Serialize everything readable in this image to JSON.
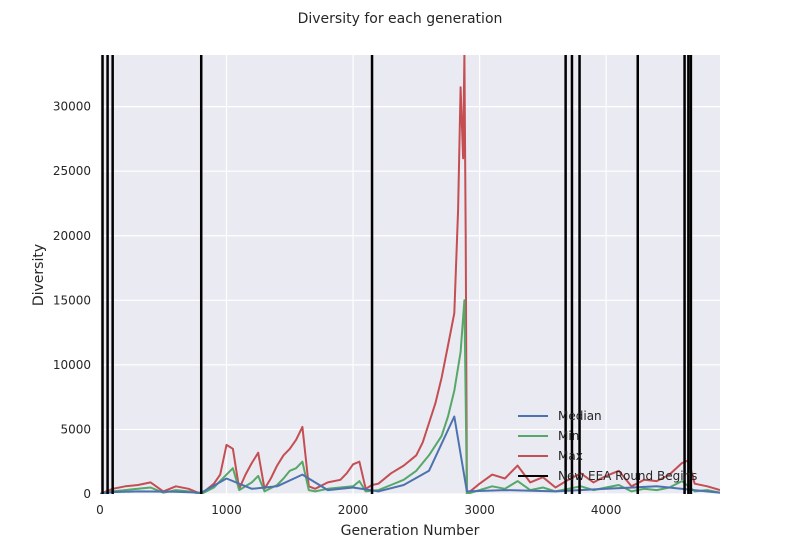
{
  "chart_data": {
    "type": "line",
    "title": "Diversity for each generation",
    "xlabel": "Generation Number",
    "ylabel": "Diversity",
    "xlim": [
      0,
      4900
    ],
    "ylim": [
      0,
      34000
    ],
    "xticks": [
      0,
      1000,
      2000,
      3000,
      4000
    ],
    "yticks": [
      0,
      5000,
      10000,
      15000,
      20000,
      25000,
      30000
    ],
    "grid": true,
    "legend_position": "lower-right",
    "colors": {
      "background": "#EAEAF2",
      "grid": "#FFFFFF",
      "median": "#4C72B0",
      "min": "#55A868",
      "max": "#C44E52",
      "rounds": "#000000"
    },
    "series": [
      {
        "name": "Median",
        "color": "#4C72B0",
        "x": [
          0,
          100,
          300,
          600,
          800,
          1000,
          1200,
          1400,
          1600,
          1800,
          2000,
          2200,
          2400,
          2600,
          2800,
          2900,
          3200,
          3600,
          4000,
          4400,
          4900
        ],
        "y": [
          0,
          150,
          200,
          180,
          100,
          1200,
          400,
          600,
          1500,
          300,
          500,
          200,
          700,
          1800,
          6000,
          200,
          300,
          200,
          400,
          600,
          100
        ]
      },
      {
        "name": "Min",
        "color": "#55A868",
        "x": [
          0,
          100,
          200,
          300,
          400,
          500,
          600,
          700,
          800,
          900,
          1000,
          1050,
          1100,
          1200,
          1250,
          1300,
          1400,
          1450,
          1500,
          1550,
          1600,
          1650,
          1700,
          1800,
          1900,
          2000,
          2050,
          2100,
          2200,
          2300,
          2400,
          2500,
          2600,
          2700,
          2750,
          2800,
          2850,
          2880,
          2900,
          3000,
          3100,
          3200,
          3300,
          3400,
          3500,
          3600,
          3700,
          3800,
          3900,
          4000,
          4100,
          4200,
          4300,
          4400,
          4500,
          4600,
          4700,
          4800,
          4900
        ],
        "y": [
          0,
          200,
          300,
          400,
          500,
          100,
          300,
          200,
          0,
          500,
          1500,
          2000,
          300,
          900,
          1400,
          200,
          700,
          1200,
          1800,
          2000,
          2500,
          300,
          200,
          400,
          500,
          600,
          1000,
          200,
          300,
          700,
          1100,
          1800,
          3000,
          4500,
          6000,
          8000,
          11000,
          15000,
          0,
          300,
          600,
          400,
          1000,
          300,
          500,
          200,
          400,
          600,
          300,
          500,
          700,
          200,
          400,
          300,
          500,
          1000,
          200,
          300,
          100
        ]
      },
      {
        "name": "Max",
        "color": "#C44E52",
        "x": [
          0,
          100,
          200,
          300,
          400,
          500,
          600,
          700,
          800,
          900,
          950,
          1000,
          1050,
          1100,
          1150,
          1200,
          1250,
          1300,
          1350,
          1400,
          1450,
          1500,
          1550,
          1600,
          1650,
          1700,
          1800,
          1900,
          1950,
          2000,
          2050,
          2100,
          2150,
          2200,
          2300,
          2400,
          2500,
          2550,
          2600,
          2650,
          2700,
          2750,
          2800,
          2830,
          2850,
          2870,
          2880,
          2890,
          2900,
          3000,
          3100,
          3200,
          3300,
          3400,
          3500,
          3600,
          3700,
          3800,
          3900,
          4000,
          4100,
          4200,
          4300,
          4400,
          4500,
          4600,
          4650,
          4700,
          4800,
          4900
        ],
        "y": [
          0,
          400,
          600,
          700,
          900,
          200,
          600,
          400,
          0,
          800,
          1500,
          3800,
          3500,
          400,
          1500,
          2400,
          3200,
          400,
          1200,
          2200,
          3000,
          3500,
          4200,
          5200,
          600,
          400,
          900,
          1100,
          1600,
          2300,
          2500,
          400,
          700,
          800,
          1600,
          2200,
          3000,
          4000,
          5500,
          7000,
          9000,
          11500,
          14000,
          22000,
          31500,
          26000,
          34000,
          20000,
          0,
          800,
          1500,
          1200,
          2200,
          900,
          1300,
          500,
          1100,
          1600,
          900,
          1400,
          1800,
          600,
          1100,
          1000,
          1500,
          2400,
          2600,
          800,
          600,
          300
        ]
      },
      {
        "name": "New EEA Round Begins",
        "color": "#000000",
        "vlines": [
          20,
          60,
          100,
          800,
          2150,
          3680,
          3730,
          3790,
          4250,
          4620,
          4650,
          4670
        ]
      }
    ]
  }
}
